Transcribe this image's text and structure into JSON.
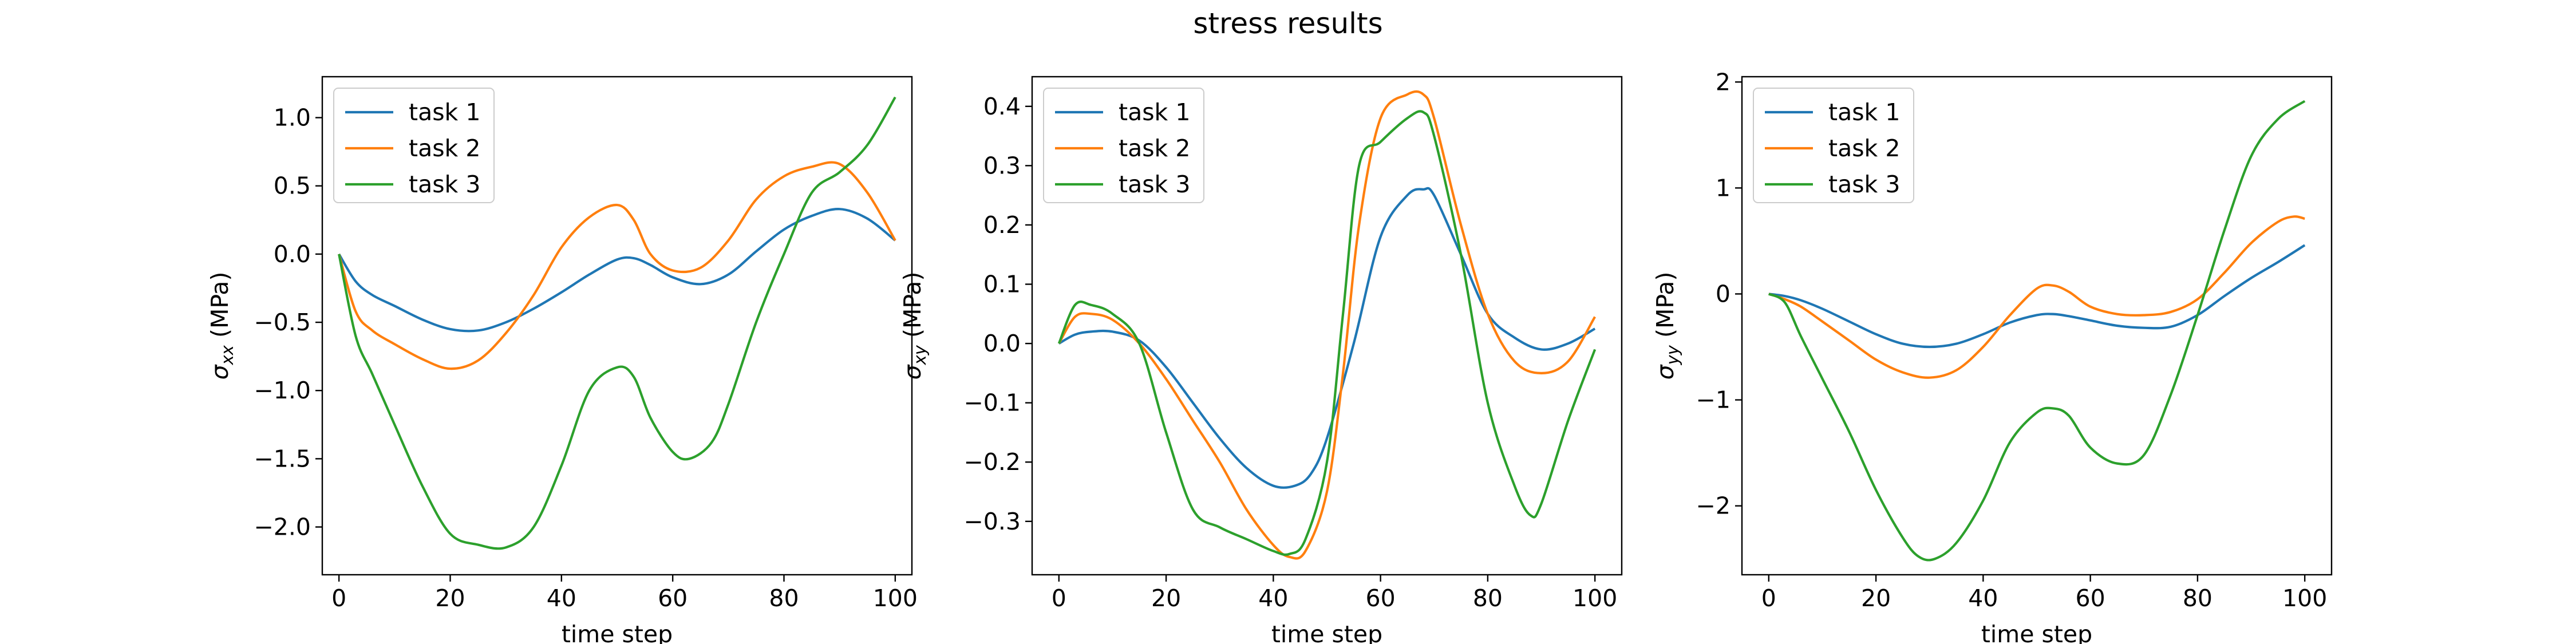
{
  "figure": {
    "title": "stress results"
  },
  "colors": {
    "task 1": "#1f77b4",
    "task 2": "#ff7f0e",
    "task 3": "#2ca02c"
  },
  "chart_data": [
    {
      "type": "line",
      "xlabel": "time step",
      "ylabel_symbol": "σ",
      "ylabel_sub": "xx",
      "ylabel_unit": " (MPa)",
      "xlim": [
        -3,
        103
      ],
      "ylim": [
        -2.35,
        1.3
      ],
      "xticks": [
        0,
        20,
        40,
        60,
        80,
        100
      ],
      "yticks": [
        -2.0,
        -1.5,
        -1.0,
        -0.5,
        0.0,
        0.5,
        1.0
      ],
      "ytick_labels": [
        "−2.0",
        "−1.5",
        "−1.0",
        "−0.5",
        "0.0",
        "0.5",
        "1.0"
      ],
      "legend": "top-left",
      "series": [
        {
          "name": "task 1",
          "x": [
            0,
            3,
            6,
            10,
            15,
            20,
            25,
            30,
            35,
            40,
            45,
            50,
            53,
            56,
            60,
            65,
            70,
            75,
            80,
            85,
            90,
            95,
            100
          ],
          "y": [
            0,
            -0.2,
            -0.3,
            -0.38,
            -0.48,
            -0.55,
            -0.56,
            -0.5,
            -0.4,
            -0.28,
            -0.15,
            -0.04,
            -0.03,
            -0.08,
            -0.17,
            -0.22,
            -0.15,
            0.02,
            0.18,
            0.28,
            0.33,
            0.26,
            0.1
          ]
        },
        {
          "name": "task 2",
          "x": [
            0,
            3,
            6,
            10,
            15,
            20,
            25,
            30,
            35,
            40,
            45,
            50,
            53,
            56,
            60,
            65,
            70,
            75,
            80,
            85,
            90,
            95,
            100
          ],
          "y": [
            0,
            -0.42,
            -0.56,
            -0.66,
            -0.77,
            -0.84,
            -0.78,
            -0.58,
            -0.3,
            0.05,
            0.27,
            0.36,
            0.25,
            0.0,
            -0.12,
            -0.1,
            0.1,
            0.4,
            0.57,
            0.64,
            0.66,
            0.45,
            0.1
          ]
        },
        {
          "name": "task 3",
          "x": [
            0,
            3,
            6,
            10,
            15,
            20,
            25,
            30,
            35,
            40,
            45,
            50,
            53,
            56,
            60,
            63,
            67,
            70,
            75,
            80,
            85,
            90,
            95,
            100
          ],
          "y": [
            0,
            -0.6,
            -0.88,
            -1.25,
            -1.7,
            -2.05,
            -2.13,
            -2.15,
            -2.0,
            -1.55,
            -1.0,
            -0.83,
            -0.9,
            -1.2,
            -1.45,
            -1.5,
            -1.38,
            -1.1,
            -0.5,
            0.0,
            0.45,
            0.6,
            0.8,
            1.15
          ]
        }
      ]
    },
    {
      "type": "line",
      "xlabel": "time step",
      "ylabel_symbol": "σ",
      "ylabel_sub": "xy",
      "ylabel_unit": " (MPa)",
      "xlim": [
        -5,
        105
      ],
      "ylim": [
        -0.39,
        0.45
      ],
      "xticks": [
        0,
        20,
        40,
        60,
        80,
        100
      ],
      "yticks": [
        -0.3,
        -0.2,
        -0.1,
        0.0,
        0.1,
        0.2,
        0.3,
        0.4
      ],
      "ytick_labels": [
        "−0.3",
        "−0.2",
        "−0.1",
        "0.0",
        "0.1",
        "0.2",
        "0.3",
        "0.4"
      ],
      "legend": "top-left",
      "series": [
        {
          "name": "task 1",
          "x": [
            0,
            3,
            6,
            10,
            15,
            20,
            25,
            30,
            35,
            40,
            44,
            47,
            50,
            55,
            60,
            65,
            68,
            70,
            75,
            80,
            85,
            90,
            95,
            100
          ],
          "y": [
            0,
            0.015,
            0.02,
            0.02,
            0.005,
            -0.04,
            -0.1,
            -0.16,
            -0.21,
            -0.24,
            -0.24,
            -0.22,
            -0.16,
            0.0,
            0.18,
            0.25,
            0.26,
            0.25,
            0.15,
            0.05,
            0.01,
            -0.01,
            0.0,
            0.025
          ]
        },
        {
          "name": "task 2",
          "x": [
            0,
            3,
            6,
            10,
            15,
            20,
            25,
            30,
            35,
            40,
            43,
            46,
            50,
            53,
            56,
            60,
            65,
            68,
            70,
            75,
            80,
            85,
            90,
            95,
            100
          ],
          "y": [
            0,
            0.045,
            0.05,
            0.04,
            0.0,
            -0.06,
            -0.13,
            -0.2,
            -0.28,
            -0.34,
            -0.36,
            -0.35,
            -0.25,
            -0.05,
            0.2,
            0.38,
            0.42,
            0.42,
            0.38,
            0.2,
            0.05,
            -0.03,
            -0.05,
            -0.03,
            0.045
          ]
        },
        {
          "name": "task 3",
          "x": [
            0,
            3,
            6,
            10,
            15,
            20,
            25,
            30,
            35,
            40,
            43,
            46,
            50,
            53,
            56,
            60,
            65,
            68,
            70,
            75,
            80,
            85,
            88,
            90,
            95,
            100
          ],
          "y": [
            0,
            0.065,
            0.065,
            0.05,
            0.0,
            -0.15,
            -0.28,
            -0.31,
            -0.33,
            -0.35,
            -0.355,
            -0.33,
            -0.2,
            0.05,
            0.3,
            0.34,
            0.38,
            0.39,
            0.35,
            0.15,
            -0.1,
            -0.24,
            -0.29,
            -0.27,
            -0.13,
            -0.01
          ]
        }
      ]
    },
    {
      "type": "line",
      "xlabel": "time step",
      "ylabel_symbol": "σ",
      "ylabel_sub": "yy",
      "ylabel_unit": " (MPa)",
      "xlim": [
        -5,
        105
      ],
      "ylim": [
        -2.65,
        2.05
      ],
      "xticks": [
        0,
        20,
        40,
        60,
        80,
        100
      ],
      "yticks": [
        -2,
        -1,
        0,
        1,
        2
      ],
      "ytick_labels": [
        "−2",
        "−1",
        "0",
        "1",
        "2"
      ],
      "legend": "top-left",
      "series": [
        {
          "name": "task 1",
          "x": [
            0,
            3,
            6,
            10,
            15,
            20,
            25,
            30,
            35,
            40,
            45,
            50,
            53,
            56,
            60,
            65,
            70,
            75,
            80,
            85,
            90,
            95,
            100
          ],
          "y": [
            0,
            -0.02,
            -0.06,
            -0.14,
            -0.26,
            -0.38,
            -0.47,
            -0.5,
            -0.47,
            -0.38,
            -0.27,
            -0.2,
            -0.19,
            -0.21,
            -0.25,
            -0.3,
            -0.32,
            -0.31,
            -0.2,
            -0.02,
            0.15,
            0.3,
            0.46
          ]
        },
        {
          "name": "task 2",
          "x": [
            0,
            3,
            6,
            10,
            15,
            20,
            25,
            30,
            35,
            40,
            45,
            50,
            53,
            56,
            60,
            65,
            70,
            75,
            80,
            85,
            90,
            95,
            98,
            100
          ],
          "y": [
            0,
            -0.05,
            -0.12,
            -0.26,
            -0.44,
            -0.62,
            -0.74,
            -0.79,
            -0.72,
            -0.5,
            -0.2,
            0.05,
            0.08,
            0.02,
            -0.12,
            -0.19,
            -0.2,
            -0.17,
            -0.05,
            0.2,
            0.48,
            0.68,
            0.73,
            0.71
          ]
        },
        {
          "name": "task 3",
          "x": [
            0,
            3,
            6,
            10,
            15,
            20,
            25,
            28,
            31,
            35,
            40,
            45,
            50,
            53,
            56,
            60,
            65,
            70,
            75,
            80,
            85,
            90,
            95,
            100
          ],
          "y": [
            0,
            -0.08,
            -0.4,
            -0.8,
            -1.3,
            -1.85,
            -2.3,
            -2.48,
            -2.5,
            -2.35,
            -1.95,
            -1.4,
            -1.12,
            -1.08,
            -1.15,
            -1.45,
            -1.6,
            -1.52,
            -0.95,
            -0.2,
            0.6,
            1.3,
            1.65,
            1.82
          ]
        }
      ]
    }
  ]
}
